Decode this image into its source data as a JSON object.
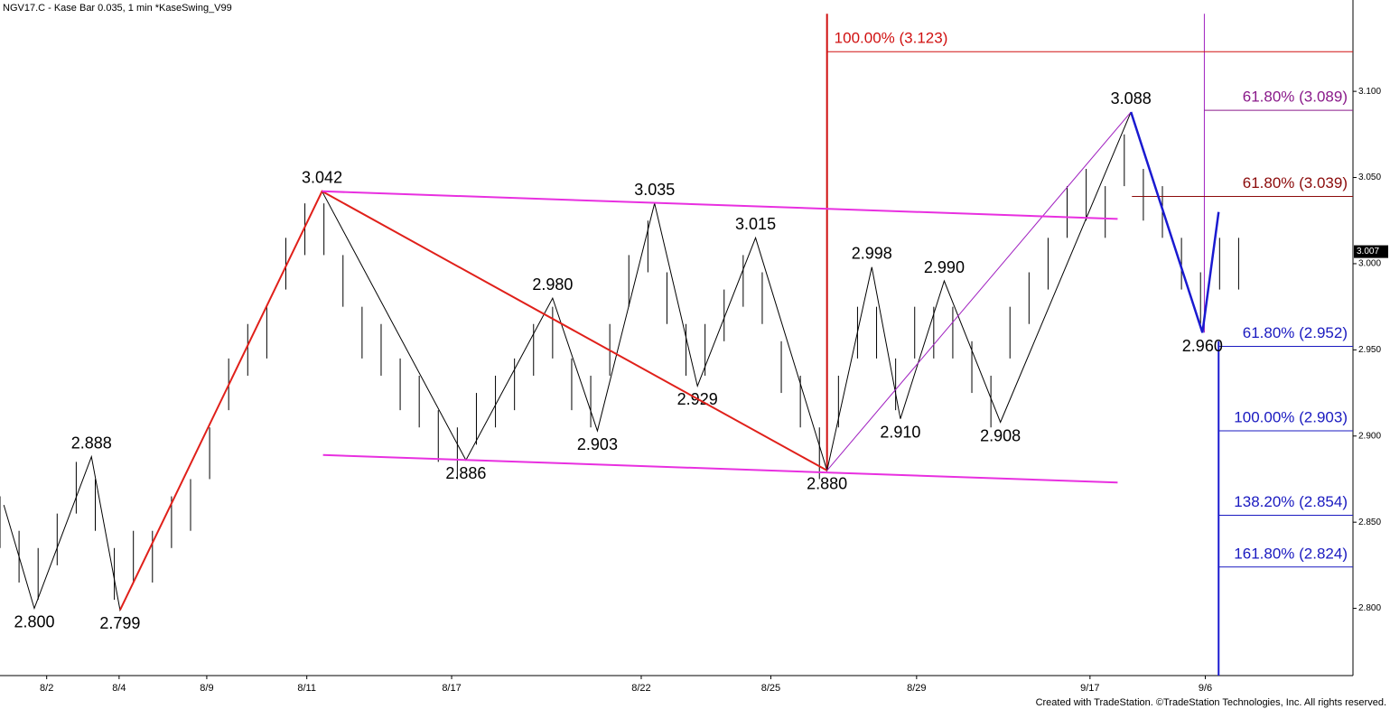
{
  "chart_data": {
    "type": "ohlc",
    "title": "NGV17.C - Kase Bar 0.035, 1 min  *KaseSwing_V99",
    "credit": "Created with TradeStation. ©TradeStation Technologies, Inc. All rights reserved.",
    "ylim": [
      2.761,
      3.153
    ],
    "yticks": [
      {
        "value": 2.8,
        "label": "2.800"
      },
      {
        "value": 2.85,
        "label": "2.850"
      },
      {
        "value": 2.9,
        "label": "2.900"
      },
      {
        "value": 2.95,
        "label": "2.950"
      },
      {
        "value": 3.0,
        "label": "3.000"
      },
      {
        "value": 3.05,
        "label": "3.050"
      },
      {
        "value": 3.1,
        "label": "3.100"
      }
    ],
    "xlim": [
      0,
      142
    ],
    "xticks": [
      {
        "value": 4.9,
        "label": "8/2"
      },
      {
        "value": 12.5,
        "label": "8/4"
      },
      {
        "value": 21.7,
        "label": "8/9"
      },
      {
        "value": 32.2,
        "label": "8/11"
      },
      {
        "value": 47.4,
        "label": "8/17"
      },
      {
        "value": 67.3,
        "label": "8/22"
      },
      {
        "value": 80.9,
        "label": "8/25"
      },
      {
        "value": 96.2,
        "label": "8/29"
      },
      {
        "value": 114.4,
        "label": "9/17"
      },
      {
        "value": 126.5,
        "label": "9/6"
      }
    ],
    "last_price": {
      "value": 3.007,
      "label": "3.007"
    },
    "bars": {
      "color": "#000000",
      "x": [
        0,
        2,
        4,
        6,
        8,
        10,
        12,
        14,
        16,
        18,
        20,
        22,
        24,
        26,
        28,
        30,
        32,
        34,
        36,
        38,
        40,
        42,
        44,
        46,
        48,
        50,
        52,
        54,
        56,
        58,
        60,
        62,
        64,
        66,
        68,
        70,
        72,
        74,
        76,
        78,
        80,
        82,
        84,
        86,
        88,
        90,
        92,
        94,
        96,
        98,
        100,
        102,
        104,
        106,
        108,
        110,
        112,
        114,
        116,
        118,
        120,
        122,
        124,
        126,
        128,
        130
      ],
      "high": [
        2.865,
        2.845,
        2.835,
        2.855,
        2.885,
        2.875,
        2.835,
        2.845,
        2.845,
        2.865,
        2.875,
        2.905,
        2.945,
        2.965,
        2.975,
        3.015,
        3.035,
        3.035,
        3.005,
        2.975,
        2.965,
        2.945,
        2.935,
        2.915,
        2.905,
        2.925,
        2.935,
        2.945,
        2.965,
        2.975,
        2.945,
        2.935,
        2.965,
        3.005,
        3.025,
        2.995,
        2.965,
        2.965,
        2.985,
        3.005,
        2.995,
        2.955,
        2.935,
        2.905,
        2.935,
        2.975,
        2.975,
        2.945,
        2.975,
        2.975,
        2.975,
        2.955,
        2.935,
        2.975,
        2.995,
        3.015,
        3.045,
        3.055,
        3.045,
        3.075,
        3.055,
        3.045,
        3.015,
        2.995,
        3.015,
        3.015
      ],
      "low": [
        2.835,
        2.815,
        2.805,
        2.825,
        2.855,
        2.845,
        2.805,
        2.815,
        2.815,
        2.835,
        2.845,
        2.875,
        2.915,
        2.935,
        2.945,
        2.985,
        3.005,
        3.005,
        2.975,
        2.945,
        2.935,
        2.915,
        2.905,
        2.885,
        2.875,
        2.895,
        2.905,
        2.915,
        2.935,
        2.945,
        2.915,
        2.905,
        2.935,
        2.975,
        2.995,
        2.965,
        2.935,
        2.935,
        2.955,
        2.975,
        2.965,
        2.925,
        2.905,
        2.875,
        2.905,
        2.945,
        2.945,
        2.915,
        2.945,
        2.945,
        2.945,
        2.925,
        2.905,
        2.945,
        2.965,
        2.985,
        3.015,
        3.025,
        3.015,
        3.045,
        3.025,
        3.015,
        2.985,
        2.965,
        2.985,
        2.985
      ]
    },
    "series": [
      {
        "color": "#000000",
        "width": 1,
        "x": [
          0.4,
          3.6,
          9.6,
          12.6,
          33.8,
          48.9,
          58.0,
          62.7,
          68.7,
          73.2,
          79.3,
          86.8,
          91.5,
          94.5,
          99.1,
          105.0,
          118.7
        ],
        "values": [
          2.86,
          2.8,
          2.888,
          2.799,
          3.042,
          2.886,
          2.98,
          2.903,
          3.035,
          2.929,
          3.015,
          2.88,
          2.998,
          2.91,
          2.99,
          2.908,
          3.088
        ],
        "value_labels": [
          null,
          "2.800",
          "2.888",
          "2.799",
          "3.042",
          "2.886",
          "2.980",
          "2.903",
          "3.035",
          "2.929",
          "3.015",
          "2.880",
          "2.998",
          "2.910",
          "2.990",
          "2.908",
          "3.088"
        ]
      },
      {
        "color": "#e0201a",
        "width": 2,
        "x": [
          12.6,
          33.8,
          86.8
        ],
        "values": [
          2.799,
          3.042,
          2.88
        ]
      },
      {
        "color": "#a020c0",
        "width": 1,
        "x": [
          86.8,
          118.7
        ],
        "values": [
          2.88,
          3.088
        ]
      },
      {
        "color": "#e830e0",
        "width": 2,
        "x": [
          33.8,
          117.3
        ],
        "values": [
          3.042,
          3.026
        ]
      },
      {
        "color": "#e830e0",
        "width": 2,
        "x": [
          33.9,
          117.3
        ],
        "values": [
          2.889,
          2.873
        ]
      },
      {
        "color": "#1a1ad0",
        "width": 2.5,
        "x": [
          118.7,
          126.2,
          127.9
        ],
        "values": [
          3.088,
          2.96,
          3.03
        ],
        "value_labels": [
          null,
          "2.960",
          null
        ]
      }
    ],
    "fib_levels": [
      {
        "label": "100.00% (3.123)",
        "value": 3.123,
        "color": "#d01010",
        "x_start": 86.8
      },
      {
        "label": "61.80% (3.089)",
        "value": 3.089,
        "color": "#8a1a8a",
        "x_start": 126.4
      },
      {
        "label": "61.80% (3.039)",
        "value": 3.039,
        "color": "#8b0a0a",
        "x_start": 118.8
      },
      {
        "label": "61.80% (2.952)",
        "value": 2.952,
        "color": "#1a1ac0",
        "x_start": 127.9
      },
      {
        "label": "100.00% (2.903)",
        "value": 2.903,
        "color": "#1a1ac0",
        "x_start": 127.9
      },
      {
        "label": "138.20% (2.854)",
        "value": 2.854,
        "color": "#1a1ac0",
        "x_start": 127.9
      },
      {
        "label": "161.80% (2.824)",
        "value": 2.824,
        "color": "#1a1ac0",
        "x_start": 127.9
      }
    ],
    "verticals": [
      {
        "x": 86.8,
        "from": 3.145,
        "to": 2.88,
        "color": "#d01010"
      },
      {
        "x": 126.4,
        "from": 3.145,
        "to": 2.96,
        "color": "#a020c0"
      },
      {
        "x": 127.9,
        "from": 2.955,
        "to": 2.761,
        "color": "#1a1ad0"
      }
    ]
  }
}
